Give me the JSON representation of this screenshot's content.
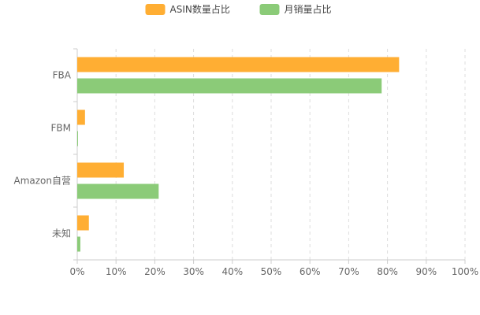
{
  "chart_data": {
    "type": "bar",
    "orientation": "horizontal",
    "categories": [
      "FBA",
      "FBM",
      "Amazon自营",
      "未知"
    ],
    "series": [
      {
        "name": "ASIN数量占比",
        "color": "#FFAE33",
        "values": [
          83,
          2,
          12,
          3
        ]
      },
      {
        "name": "月销量占比",
        "color": "#8BCB78",
        "values": [
          78.5,
          0.2,
          21,
          0.8
        ]
      }
    ],
    "xlim": [
      0,
      100
    ],
    "x_ticks": [
      "0%",
      "10%",
      "20%",
      "30%",
      "40%",
      "50%",
      "60%",
      "70%",
      "80%",
      "90%",
      "100%"
    ],
    "grid": true,
    "legend_position": "top-center",
    "title": "",
    "xlabel": "",
    "ylabel": ""
  }
}
